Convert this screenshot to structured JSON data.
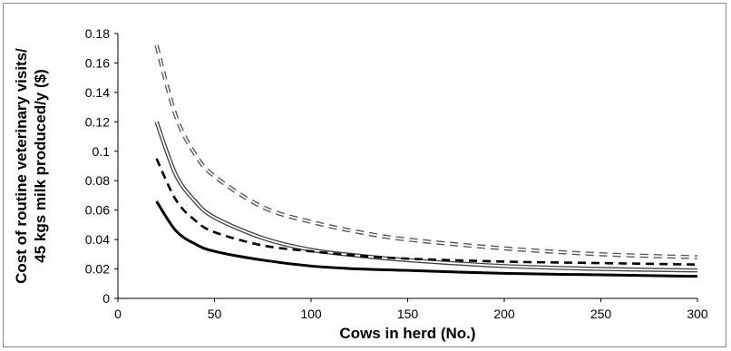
{
  "chart_data": {
    "type": "line",
    "title": "",
    "xlabel": "Cows in herd (No.)",
    "ylabel_line1": "Cost of routine veterinary visits/",
    "ylabel_line2": "45 kgs milk produced/y ($)",
    "xlim": [
      0,
      300
    ],
    "ylim": [
      0,
      0.18
    ],
    "x_ticks": [
      0,
      50,
      100,
      150,
      200,
      250,
      300
    ],
    "y_ticks": [
      0,
      0.02,
      0.04,
      0.06,
      0.08,
      0.1,
      0.12,
      0.14,
      0.16,
      0.18
    ],
    "y_tick_labels": [
      "0",
      "0.02",
      "0.04",
      "0.06",
      "0.08",
      "0.1",
      "0.12",
      "0.14",
      "0.16",
      "0.18"
    ],
    "grid": false,
    "legend": "none",
    "x": [
      20,
      30,
      40,
      50,
      75,
      100,
      125,
      150,
      200,
      250,
      300
    ],
    "series": [
      {
        "style": "dashed-double",
        "color": "#555555",
        "values": [
          0.172,
          0.124,
          0.098,
          0.083,
          0.062,
          0.052,
          0.045,
          0.04,
          0.034,
          0.03,
          0.028
        ]
      },
      {
        "style": "solid-double",
        "color": "#444444",
        "values": [
          0.12,
          0.084,
          0.066,
          0.055,
          0.041,
          0.033,
          0.029,
          0.026,
          0.022,
          0.02,
          0.019
        ]
      },
      {
        "style": "dashed",
        "color": "#000000",
        "values": [
          0.095,
          0.067,
          0.053,
          0.045,
          0.036,
          0.032,
          0.029,
          0.027,
          0.025,
          0.024,
          0.023
        ]
      },
      {
        "style": "solid",
        "color": "#000000",
        "values": [
          0.066,
          0.046,
          0.037,
          0.032,
          0.026,
          0.022,
          0.02,
          0.019,
          0.017,
          0.016,
          0.015
        ]
      }
    ]
  }
}
